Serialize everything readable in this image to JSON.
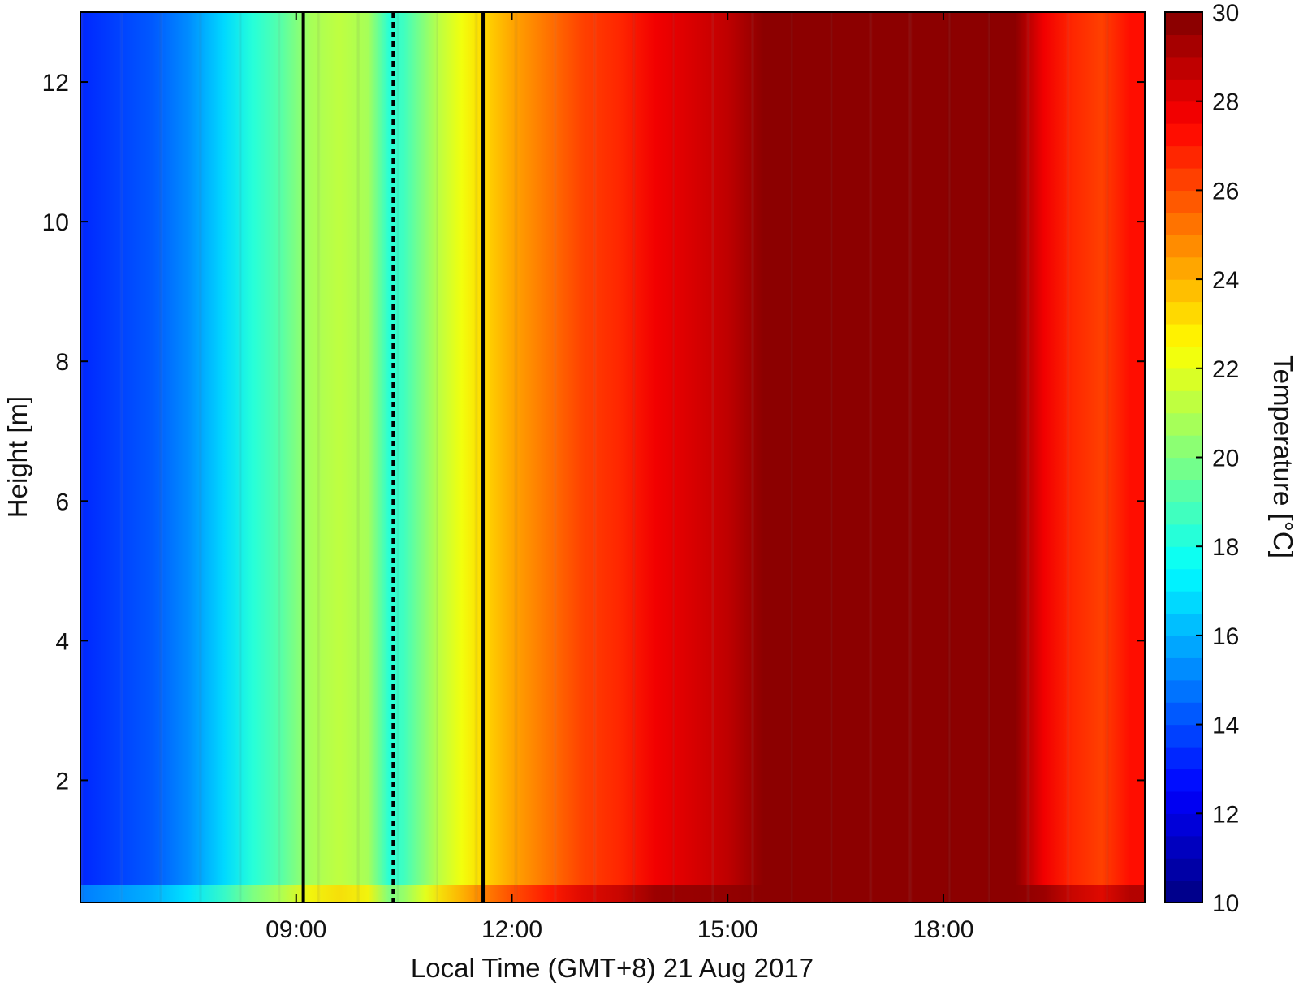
{
  "chart_data": {
    "type": "heatmap",
    "title": "",
    "xlabel": "Local Time (GMT+8) 21 Aug 2017",
    "ylabel": "Height [m]",
    "x_unit": "hours (local time)",
    "xlim": [
      6.0,
      20.8
    ],
    "ylim": [
      0.25,
      13.0
    ],
    "x_ticks": [
      9,
      12,
      15,
      18
    ],
    "x_tick_labels": [
      "09:00",
      "12:00",
      "15:00",
      "18:00"
    ],
    "y_ticks": [
      2,
      4,
      6,
      8,
      10,
      12
    ],
    "y_tick_labels": [
      "2",
      "4",
      "6",
      "8",
      "10",
      "12"
    ],
    "colorbar": {
      "label": "Temperature [°C]",
      "range": [
        10,
        30
      ],
      "ticks": [
        10,
        12,
        14,
        16,
        18,
        20,
        22,
        24,
        26,
        28,
        30
      ],
      "tick_labels": [
        "10",
        "12",
        "14",
        "16",
        "18",
        "20",
        "22",
        "24",
        "26",
        "28",
        "30"
      ],
      "colormap": "jet",
      "levels": 40
    },
    "temperature_profile": {
      "time": [
        6.0,
        6.5,
        7.0,
        7.5,
        8.0,
        8.4,
        8.8,
        9.2,
        9.6,
        10.0,
        10.3,
        10.5,
        10.8,
        11.0,
        11.3,
        11.6,
        12.0,
        12.5,
        13.0,
        13.5,
        14.0,
        14.5,
        15.0,
        15.5,
        16.0,
        16.5,
        17.0,
        17.5,
        18.0,
        18.5,
        19.0,
        19.4,
        19.8,
        20.2,
        20.6,
        20.8
      ],
      "temperature": [
        13.5,
        14.0,
        14.5,
        15.3,
        16.8,
        18.2,
        19.5,
        20.8,
        21.2,
        21.0,
        18.2,
        19.0,
        20.5,
        21.5,
        22.5,
        23.2,
        24.2,
        25.4,
        26.2,
        27.0,
        27.7,
        28.3,
        29.0,
        29.7,
        30.0,
        30.0,
        30.0,
        30.0,
        30.0,
        30.0,
        29.6,
        27.6,
        27.0,
        26.5,
        27.2,
        27.5
      ]
    },
    "near_surface_warm_layer": {
      "height_m": [
        0.25,
        0.5
      ],
      "warming_c": 2.0
    },
    "vertical_markers": [
      {
        "x": 9.1,
        "style": "solid"
      },
      {
        "x": 10.35,
        "style": "dashed"
      },
      {
        "x": 11.6,
        "style": "solid"
      }
    ],
    "grid": false,
    "legend": "colorbar-right"
  }
}
